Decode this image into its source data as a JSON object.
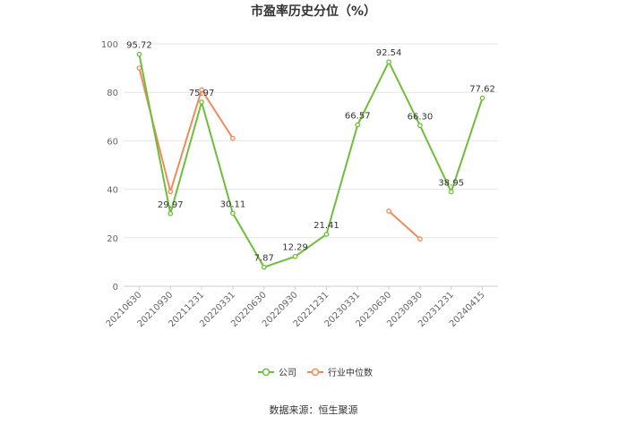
{
  "chart_data": {
    "type": "line",
    "title": "市盈率历史分位（%）",
    "xlabel": "",
    "ylabel": "",
    "ylim": [
      0,
      100
    ],
    "yticks": [
      0,
      20,
      40,
      60,
      80,
      100
    ],
    "categories": [
      "20210630",
      "20210930",
      "20211231",
      "20220331",
      "20220630",
      "20220930",
      "20221231",
      "20230331",
      "20230630",
      "20230930",
      "20231231",
      "20240415"
    ],
    "series": [
      {
        "name": "公司",
        "color": "#6cbf3a",
        "values": [
          95.72,
          29.97,
          75.97,
          30.11,
          7.87,
          12.29,
          21.41,
          66.57,
          92.54,
          66.3,
          38.95,
          77.62
        ],
        "labels": [
          "95.72",
          "29.97",
          "75.97",
          "30.11",
          "7.87",
          "12.29",
          "21.41",
          "66.57",
          "92.54",
          "66.30",
          "38.95",
          "77.62"
        ]
      },
      {
        "name": "行业中位数",
        "color": "#f08a5d",
        "values": [
          90,
          39,
          81,
          61,
          null,
          null,
          null,
          null,
          31,
          19.5,
          null,
          null
        ]
      }
    ],
    "grid": true,
    "legend": "bottom"
  },
  "source": "数据来源：恒生聚源"
}
